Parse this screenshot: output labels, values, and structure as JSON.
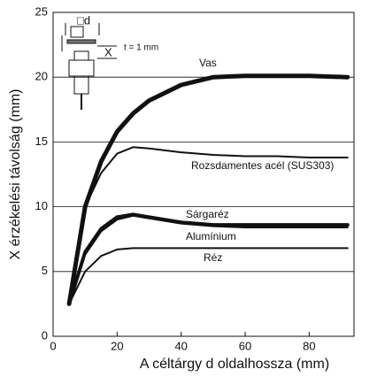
{
  "chart_data": {
    "type": "line",
    "x_label": "A céltárgy d oldalhossza (mm)",
    "y_label": "X érzékelési távolság (mm)",
    "x": [
      5,
      10,
      15,
      20,
      25,
      30,
      40,
      50,
      60,
      70,
      80,
      92
    ],
    "series": [
      {
        "name": "Vas",
        "color": "#111111",
        "values": [
          2.5,
          10,
          13.5,
          15.8,
          17.2,
          18.2,
          19.4,
          20,
          20.1,
          20.1,
          20.1,
          20
        ]
      },
      {
        "name": "Rozsdamentes acél (SUS303)",
        "color": "#111111",
        "values": [
          2.5,
          10,
          12.6,
          14.1,
          14.6,
          14.5,
          14.2,
          14,
          13.9,
          13.9,
          13.8,
          13.8
        ]
      },
      {
        "name": "Sárgaréz",
        "color": "#111111",
        "values": [
          2.5,
          6.5,
          8.3,
          9.2,
          9.4,
          9.2,
          8.8,
          8.6,
          8.6,
          8.6,
          8.6,
          8.6
        ]
      },
      {
        "name": "Alumínium",
        "color": "#111111",
        "values": [
          2.5,
          6.3,
          8.1,
          9.0,
          9.3,
          9.1,
          8.7,
          8.5,
          8.4,
          8.4,
          8.4,
          8.4
        ]
      },
      {
        "name": "Réz",
        "color": "#111111",
        "values": [
          2.5,
          5,
          6.2,
          6.7,
          6.8,
          6.8,
          6.8,
          6.8,
          6.8,
          6.8,
          6.8,
          6.8
        ]
      }
    ],
    "xlim": [
      0,
      94
    ],
    "xticks": [
      0,
      20,
      40,
      60,
      80
    ],
    "ylim": [
      0,
      25
    ],
    "yticks": [
      0,
      5,
      10,
      15,
      20,
      25
    ],
    "grid": true,
    "inset": {
      "side": "□d",
      "distance": "X",
      "thickness": "t = 1 mm"
    }
  }
}
